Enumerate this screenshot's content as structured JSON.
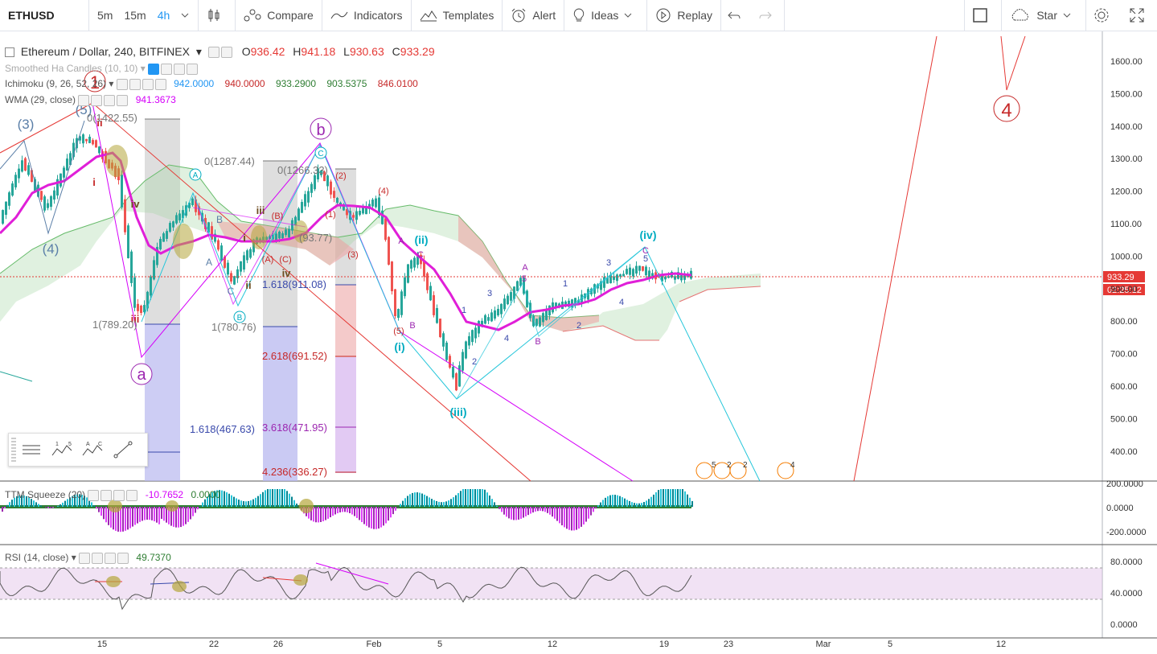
{
  "toolbar": {
    "symbol": "ETHUSD",
    "timeframes": [
      "5m",
      "15m",
      "4h"
    ],
    "active_timeframe": "4h",
    "compare": "Compare",
    "indicators": "Indicators",
    "templates": "Templates",
    "alert": "Alert",
    "ideas": "Ideas",
    "replay": "Replay",
    "star": "Star"
  },
  "legend": {
    "title": "Ethereum / Dollar, 240, BITFINEX",
    "o_label": "O",
    "o": "936.42",
    "h_label": "H",
    "h": "941.18",
    "l_label": "L",
    "l": "930.63",
    "c_label": "C",
    "c": "933.29",
    "smoothed": "Smoothed Ha Candles (10, 10)",
    "ichimoku": "Ichimoku (9, 26, 52, 26)",
    "ichimoku_vals": [
      "942.0000",
      "940.0000",
      "933.2900",
      "903.5375",
      "846.0100"
    ],
    "wma": "WMA (29, close)",
    "wma_val": "941.3673",
    "ttm": "TTM Squeeze (20)",
    "ttm_vals": [
      "-10.7652",
      "0.0000"
    ],
    "rsi": "RSI (14, close)",
    "rsi_val": "49.7370"
  },
  "price_axis": [
    "1600.00",
    "1500.00",
    "1400.00",
    "1300.00",
    "1200.00",
    "1100.00",
    "1000.00",
    "900.00",
    "800.00",
    "700.00",
    "600.00",
    "500.00",
    "400.00"
  ],
  "current_price": "933.29",
  "countdown": "02:25:12",
  "ttm_axis": [
    "200.0000",
    "0.0000",
    "-200.0000"
  ],
  "rsi_axis": [
    "80.0000",
    "40.0000",
    "0.0000"
  ],
  "time_axis": [
    "15",
    "22",
    "26",
    "Feb",
    "5",
    "12",
    "19",
    "23",
    "Mar",
    "5",
    "12"
  ],
  "wave_labels": {
    "w1": "1",
    "w4": "4",
    "a": "a",
    "b": "b",
    "p3": "(3)",
    "p4": "(4)",
    "p5": "(5)",
    "ii": "ii",
    "i": "i",
    "iv": "iv",
    "iii": "iii",
    "iv2": "iv",
    "ii2": "ii",
    "i2": "i",
    "A": "A",
    "B": "B",
    "C": "C",
    "i_p": "(i)",
    "ii_p": "(ii)",
    "iii_p": "(iii)",
    "iv_p": "(iv)",
    "n1": "1",
    "n2": "2",
    "n3": "3",
    "n4": "4",
    "n5": "5",
    "pA": "(A)",
    "pB": "(B)",
    "pC": "(C)",
    "p1": "(1)",
    "p2": "(2)",
    "pp3": "(3)",
    "pp4": "(4)",
    "pp5": "(5)"
  },
  "fib_labels": {
    "f0a": "0(1422.55)",
    "f1a": "1(789.20)",
    "f0b": "0(1287.44)",
    "f1b": "1(780.76)",
    "f1618b": "1.618(467.63)",
    "f0c": "0(1266.33)",
    "f1618c": "1.618(911.08)",
    "f2618c": "2.618(691.52)",
    "f3618c": "3.618(471.95)",
    "f4236c": "4.236(336.27)",
    "fmid": "(93.77)"
  },
  "events": [
    "5",
    "2",
    "2",
    "4"
  ],
  "colors": {
    "bull": "#26a69a",
    "bear": "#ef5350",
    "wma": "#e01fd8",
    "accent": "#2196f3",
    "wave_red": "#c62828",
    "wave_purple": "#9c27b0",
    "wave_cyan": "#00acc1"
  },
  "drawing_tools": [
    "brush-icon",
    "wave-15-icon",
    "wave-ac-icon",
    "line-icon"
  ]
}
